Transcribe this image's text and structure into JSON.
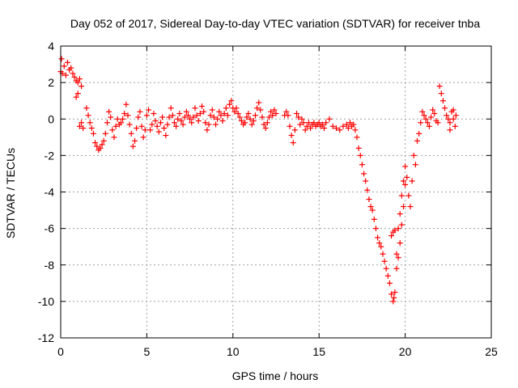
{
  "chart_data": {
    "type": "scatter",
    "title": "Day 052 of 2017, Sidereal Day-to-day VTEC variation (SDTVAR) for receiver tnba",
    "xlabel": "GPS time / hours",
    "ylabel": "SDTVAR / TECUs",
    "xlim": [
      0,
      25
    ],
    "ylim": [
      -12,
      4
    ],
    "x_ticks": [
      0,
      5,
      10,
      15,
      20,
      25
    ],
    "y_ticks": [
      -12,
      -10,
      -8,
      -6,
      -4,
      -2,
      0,
      2,
      4
    ],
    "x_tick_labels": [
      "0",
      "5",
      "10",
      "15",
      "20",
      "25"
    ],
    "y_tick_labels": [
      "-12",
      "-10",
      "-8",
      "-6",
      "-4",
      "-2",
      "0",
      "2",
      "4"
    ],
    "grid": true,
    "marker": "+",
    "color": "#ff0000",
    "series": [
      {
        "name": "SDTVAR",
        "points": [
          [
            0.0,
            2.6
          ],
          [
            0.05,
            3.3
          ],
          [
            0.1,
            2.5
          ],
          [
            0.2,
            2.9
          ],
          [
            0.3,
            2.4
          ],
          [
            0.4,
            3.1
          ],
          [
            0.5,
            2.7
          ],
          [
            0.6,
            2.8
          ],
          [
            0.7,
            2.5
          ],
          [
            0.8,
            2.3
          ],
          [
            0.9,
            2.1
          ],
          [
            1.0,
            2.0
          ],
          [
            1.1,
            2.2
          ],
          [
            1.2,
            1.8
          ],
          [
            0.9,
            1.2
          ],
          [
            1.0,
            1.4
          ],
          [
            1.1,
            -0.4
          ],
          [
            1.2,
            -0.2
          ],
          [
            1.3,
            -0.5
          ],
          [
            1.5,
            0.6
          ],
          [
            1.6,
            0.2
          ],
          [
            1.7,
            -0.2
          ],
          [
            1.8,
            -0.5
          ],
          [
            1.9,
            -0.8
          ],
          [
            2.0,
            -1.3
          ],
          [
            2.1,
            -1.5
          ],
          [
            2.2,
            -1.7
          ],
          [
            2.3,
            -1.6
          ],
          [
            2.4,
            -1.4
          ],
          [
            2.5,
            -1.2
          ],
          [
            2.6,
            -0.8
          ],
          [
            2.7,
            -0.2
          ],
          [
            2.8,
            0.4
          ],
          [
            2.9,
            0.1
          ],
          [
            3.0,
            -0.6
          ],
          [
            3.1,
            -1.0
          ],
          [
            3.2,
            -0.4
          ],
          [
            3.3,
            0.0
          ],
          [
            3.4,
            -0.3
          ],
          [
            3.5,
            -0.2
          ],
          [
            3.6,
            0.0
          ],
          [
            3.7,
            0.3
          ],
          [
            3.8,
            0.8
          ],
          [
            3.9,
            0.2
          ],
          [
            4.0,
            -0.3
          ],
          [
            4.1,
            -0.8
          ],
          [
            4.2,
            -1.5
          ],
          [
            4.3,
            -1.2
          ],
          [
            4.4,
            -0.5
          ],
          [
            4.5,
            0.1
          ],
          [
            4.6,
            0.4
          ],
          [
            4.7,
            -0.4
          ],
          [
            4.8,
            -1.0
          ],
          [
            4.9,
            -0.6
          ],
          [
            5.0,
            0.2
          ],
          [
            5.1,
            0.5
          ],
          [
            5.2,
            -0.6
          ],
          [
            5.3,
            -0.3
          ],
          [
            5.4,
            0.3
          ],
          [
            5.5,
            -0.1
          ],
          [
            5.6,
            -0.4
          ],
          [
            5.7,
            -0.7
          ],
          [
            5.8,
            -0.2
          ],
          [
            5.9,
            0.1
          ],
          [
            6.0,
            -0.5
          ],
          [
            6.1,
            -0.9
          ],
          [
            6.2,
            -0.3
          ],
          [
            6.3,
            0.1
          ],
          [
            6.4,
            0.6
          ],
          [
            6.5,
            0.2
          ],
          [
            6.6,
            -0.2
          ],
          [
            6.7,
            -0.4
          ],
          [
            6.8,
            0.0
          ],
          [
            6.9,
            0.3
          ],
          [
            7.0,
            -0.1
          ],
          [
            7.1,
            -0.3
          ],
          [
            7.2,
            0.1
          ],
          [
            7.3,
            0.4
          ],
          [
            7.4,
            0.2
          ],
          [
            7.5,
            0.0
          ],
          [
            7.6,
            -0.2
          ],
          [
            7.7,
            0.1
          ],
          [
            7.8,
            0.6
          ],
          [
            7.9,
            0.2
          ],
          [
            8.0,
            -0.1
          ],
          [
            8.1,
            0.3
          ],
          [
            8.2,
            0.7
          ],
          [
            8.3,
            0.4
          ],
          [
            8.4,
            -0.2
          ],
          [
            8.5,
            -0.6
          ],
          [
            8.6,
            -0.3
          ],
          [
            8.7,
            0.2
          ],
          [
            8.8,
            0.5
          ],
          [
            8.9,
            0.1
          ],
          [
            9.0,
            -0.3
          ],
          [
            9.1,
            0.0
          ],
          [
            9.2,
            0.4
          ],
          [
            9.3,
            0.2
          ],
          [
            9.4,
            -0.1
          ],
          [
            9.5,
            0.3
          ],
          [
            9.6,
            0.6
          ],
          [
            9.7,
            0.2
          ],
          [
            9.8,
            0.8
          ],
          [
            9.9,
            1.0
          ],
          [
            10.0,
            0.6
          ],
          [
            10.1,
            0.4
          ],
          [
            10.2,
            0.6
          ],
          [
            10.3,
            0.3
          ],
          [
            10.4,
            0.1
          ],
          [
            10.5,
            -0.1
          ],
          [
            10.6,
            -0.3
          ],
          [
            10.7,
            -0.2
          ],
          [
            10.8,
            0.1
          ],
          [
            10.9,
            0.3
          ],
          [
            11.0,
            0.0
          ],
          [
            11.1,
            -0.3
          ],
          [
            11.2,
            -0.1
          ],
          [
            11.3,
            0.2
          ],
          [
            11.4,
            0.6
          ],
          [
            11.5,
            0.9
          ],
          [
            11.6,
            0.5
          ],
          [
            11.7,
            0.1
          ],
          [
            11.8,
            -0.3
          ],
          [
            11.9,
            -0.5
          ],
          [
            12.0,
            -0.2
          ],
          [
            12.1,
            0.1
          ],
          [
            12.2,
            0.4
          ],
          [
            12.3,
            0.2
          ],
          [
            12.4,
            0.5
          ],
          [
            12.5,
            0.3
          ],
          [
            13.0,
            0.2
          ],
          [
            13.1,
            0.4
          ],
          [
            13.2,
            0.2
          ],
          [
            13.3,
            -0.4
          ],
          [
            13.4,
            -0.9
          ],
          [
            13.5,
            -1.3
          ],
          [
            13.6,
            -0.6
          ],
          [
            13.7,
            0.3
          ],
          [
            13.8,
            0.1
          ],
          [
            13.9,
            -0.3
          ],
          [
            14.0,
            0.0
          ],
          [
            14.1,
            -0.2
          ],
          [
            14.2,
            -0.6
          ],
          [
            14.3,
            -0.4
          ],
          [
            14.4,
            -0.2
          ],
          [
            14.5,
            -0.5
          ],
          [
            14.6,
            -0.3
          ],
          [
            14.7,
            -0.2
          ],
          [
            14.8,
            -0.4
          ],
          [
            14.9,
            -0.3
          ],
          [
            15.0,
            -0.2
          ],
          [
            15.1,
            -0.4
          ],
          [
            15.2,
            -0.3
          ],
          [
            15.3,
            -0.5
          ],
          [
            15.4,
            -0.2
          ],
          [
            15.6,
            0.0
          ],
          [
            15.8,
            -0.4
          ],
          [
            16.0,
            -0.5
          ],
          [
            16.2,
            -0.6
          ],
          [
            16.4,
            -0.4
          ],
          [
            16.6,
            -0.3
          ],
          [
            16.7,
            -0.5
          ],
          [
            16.8,
            -0.2
          ],
          [
            16.9,
            -0.4
          ],
          [
            17.0,
            -0.3
          ],
          [
            17.1,
            -0.6
          ],
          [
            17.2,
            -1.0
          ],
          [
            17.3,
            -1.6
          ],
          [
            17.4,
            -2.0
          ],
          [
            17.5,
            -2.5
          ],
          [
            17.6,
            -3.0
          ],
          [
            17.7,
            -3.4
          ],
          [
            17.8,
            -3.9
          ],
          [
            17.9,
            -4.4
          ],
          [
            18.0,
            -4.8
          ],
          [
            18.1,
            -5.0
          ],
          [
            18.2,
            -5.5
          ],
          [
            18.3,
            -6.0
          ],
          [
            18.4,
            -6.5
          ],
          [
            18.5,
            -6.8
          ],
          [
            18.6,
            -7.0
          ],
          [
            18.7,
            -7.4
          ],
          [
            18.8,
            -7.8
          ],
          [
            18.9,
            -8.2
          ],
          [
            19.0,
            -8.6
          ],
          [
            19.1,
            -9.0
          ],
          [
            19.2,
            -9.6
          ],
          [
            19.3,
            -10.0
          ],
          [
            19.35,
            -9.8
          ],
          [
            19.4,
            -9.5
          ],
          [
            19.2,
            -6.4
          ],
          [
            19.3,
            -6.2
          ],
          [
            19.4,
            -6.1
          ],
          [
            19.5,
            -7.4
          ],
          [
            19.5,
            -8.2
          ],
          [
            19.6,
            -6.0
          ],
          [
            19.6,
            -7.6
          ],
          [
            19.7,
            -5.2
          ],
          [
            19.7,
            -6.8
          ],
          [
            19.8,
            -4.2
          ],
          [
            19.8,
            -5.8
          ],
          [
            19.9,
            -3.4
          ],
          [
            19.9,
            -4.8
          ],
          [
            20.0,
            -2.6
          ],
          [
            20.0,
            -3.6
          ],
          [
            20.1,
            -3.2
          ],
          [
            20.2,
            -4.2
          ],
          [
            20.3,
            -4.8
          ],
          [
            20.4,
            -3.4
          ],
          [
            20.5,
            -2.0
          ],
          [
            20.6,
            -2.5
          ],
          [
            20.7,
            -1.2
          ],
          [
            20.8,
            -0.8
          ],
          [
            20.9,
            -0.2
          ],
          [
            21.0,
            0.4
          ],
          [
            21.1,
            0.2
          ],
          [
            21.2,
            0.0
          ],
          [
            21.3,
            -0.2
          ],
          [
            21.4,
            -0.4
          ],
          [
            21.5,
            0.1
          ],
          [
            21.6,
            0.5
          ],
          [
            21.7,
            0.3
          ],
          [
            21.8,
            -0.1
          ],
          [
            21.9,
            -0.2
          ],
          [
            22.0,
            1.8
          ],
          [
            22.1,
            1.4
          ],
          [
            22.2,
            1.0
          ],
          [
            22.3,
            0.6
          ],
          [
            22.4,
            0.2
          ],
          [
            22.5,
            0.0
          ],
          [
            22.6,
            -0.2
          ],
          [
            22.7,
            0.4
          ],
          [
            22.8,
            0.0
          ],
          [
            22.9,
            -0.4
          ],
          [
            22.95,
            0.2
          ],
          [
            22.6,
            -0.6
          ],
          [
            22.8,
            0.5
          ]
        ]
      }
    ]
  }
}
